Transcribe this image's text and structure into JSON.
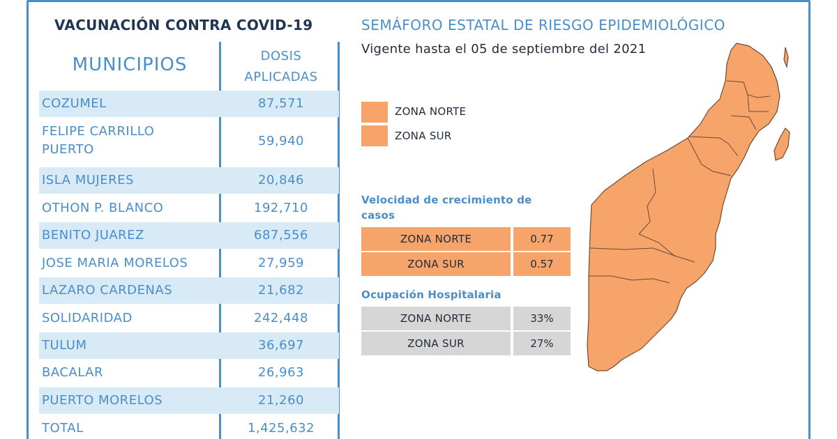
{
  "vaccination": {
    "title": "VACUNACIÓN CONTRA COVID-19",
    "header_municipios": "MUNICIPIOS",
    "header_dosis_line1": "DOSIS",
    "header_dosis_line2": "APLICADAS",
    "rows": [
      {
        "municipio": "COZUMEL",
        "dosis": "87,571"
      },
      {
        "municipio": "FELIPE CARRILLO",
        "municipio_line2": "PUERTO",
        "dosis": "59,940"
      },
      {
        "municipio": "ISLA MUJERES",
        "dosis": "20,846"
      },
      {
        "municipio": "OTHON P. BLANCO",
        "dosis": "192,710"
      },
      {
        "municipio": "BENITO JUAREZ",
        "dosis": "687,556"
      },
      {
        "municipio": "JOSE MARIA MORELOS",
        "dosis": "27,959"
      },
      {
        "municipio": "LAZARO CARDENAS",
        "dosis": "21,682"
      },
      {
        "municipio": "SOLIDARIDAD",
        "dosis": "242,448"
      },
      {
        "municipio": "TULUM",
        "dosis": "36,697"
      },
      {
        "municipio": "BACALAR",
        "dosis": "26,963"
      },
      {
        "municipio": "PUERTO MORELOS",
        "dosis": "21,260"
      },
      {
        "municipio": "TOTAL",
        "dosis": "1,425,632"
      }
    ]
  },
  "semaforo": {
    "title": "SEMÁFORO ESTATAL DE RIESGO EPIDEMIOLÓGICO",
    "subtitle": "Vigente hasta el 05 de septiembre del 2021",
    "legend": [
      {
        "label": "ZONA NORTE",
        "color": "#f6a46a"
      },
      {
        "label": "ZONA SUR",
        "color": "#f6a46a"
      }
    ],
    "velocidad": {
      "title_line1": "Velocidad de crecimiento de",
      "title_line2": "casos",
      "rows": [
        {
          "zona": "ZONA NORTE",
          "valor": "0.77"
        },
        {
          "zona": "ZONA SUR",
          "valor": "0.57"
        }
      ]
    },
    "ocupacion": {
      "title": "Ocupación Hospitalaria",
      "rows": [
        {
          "zona": "ZONA NORTE",
          "valor": "33%"
        },
        {
          "zona": "ZONA SUR",
          "valor": "27%"
        }
      ]
    },
    "map_color": "#f6a46a",
    "map_icon": "quintana-roo-map"
  },
  "colors": {
    "accent_blue": "#4a8ec9",
    "row_shade": "#d9eaf7",
    "orange": "#f6a46a",
    "gray": "#d6d6d6"
  }
}
